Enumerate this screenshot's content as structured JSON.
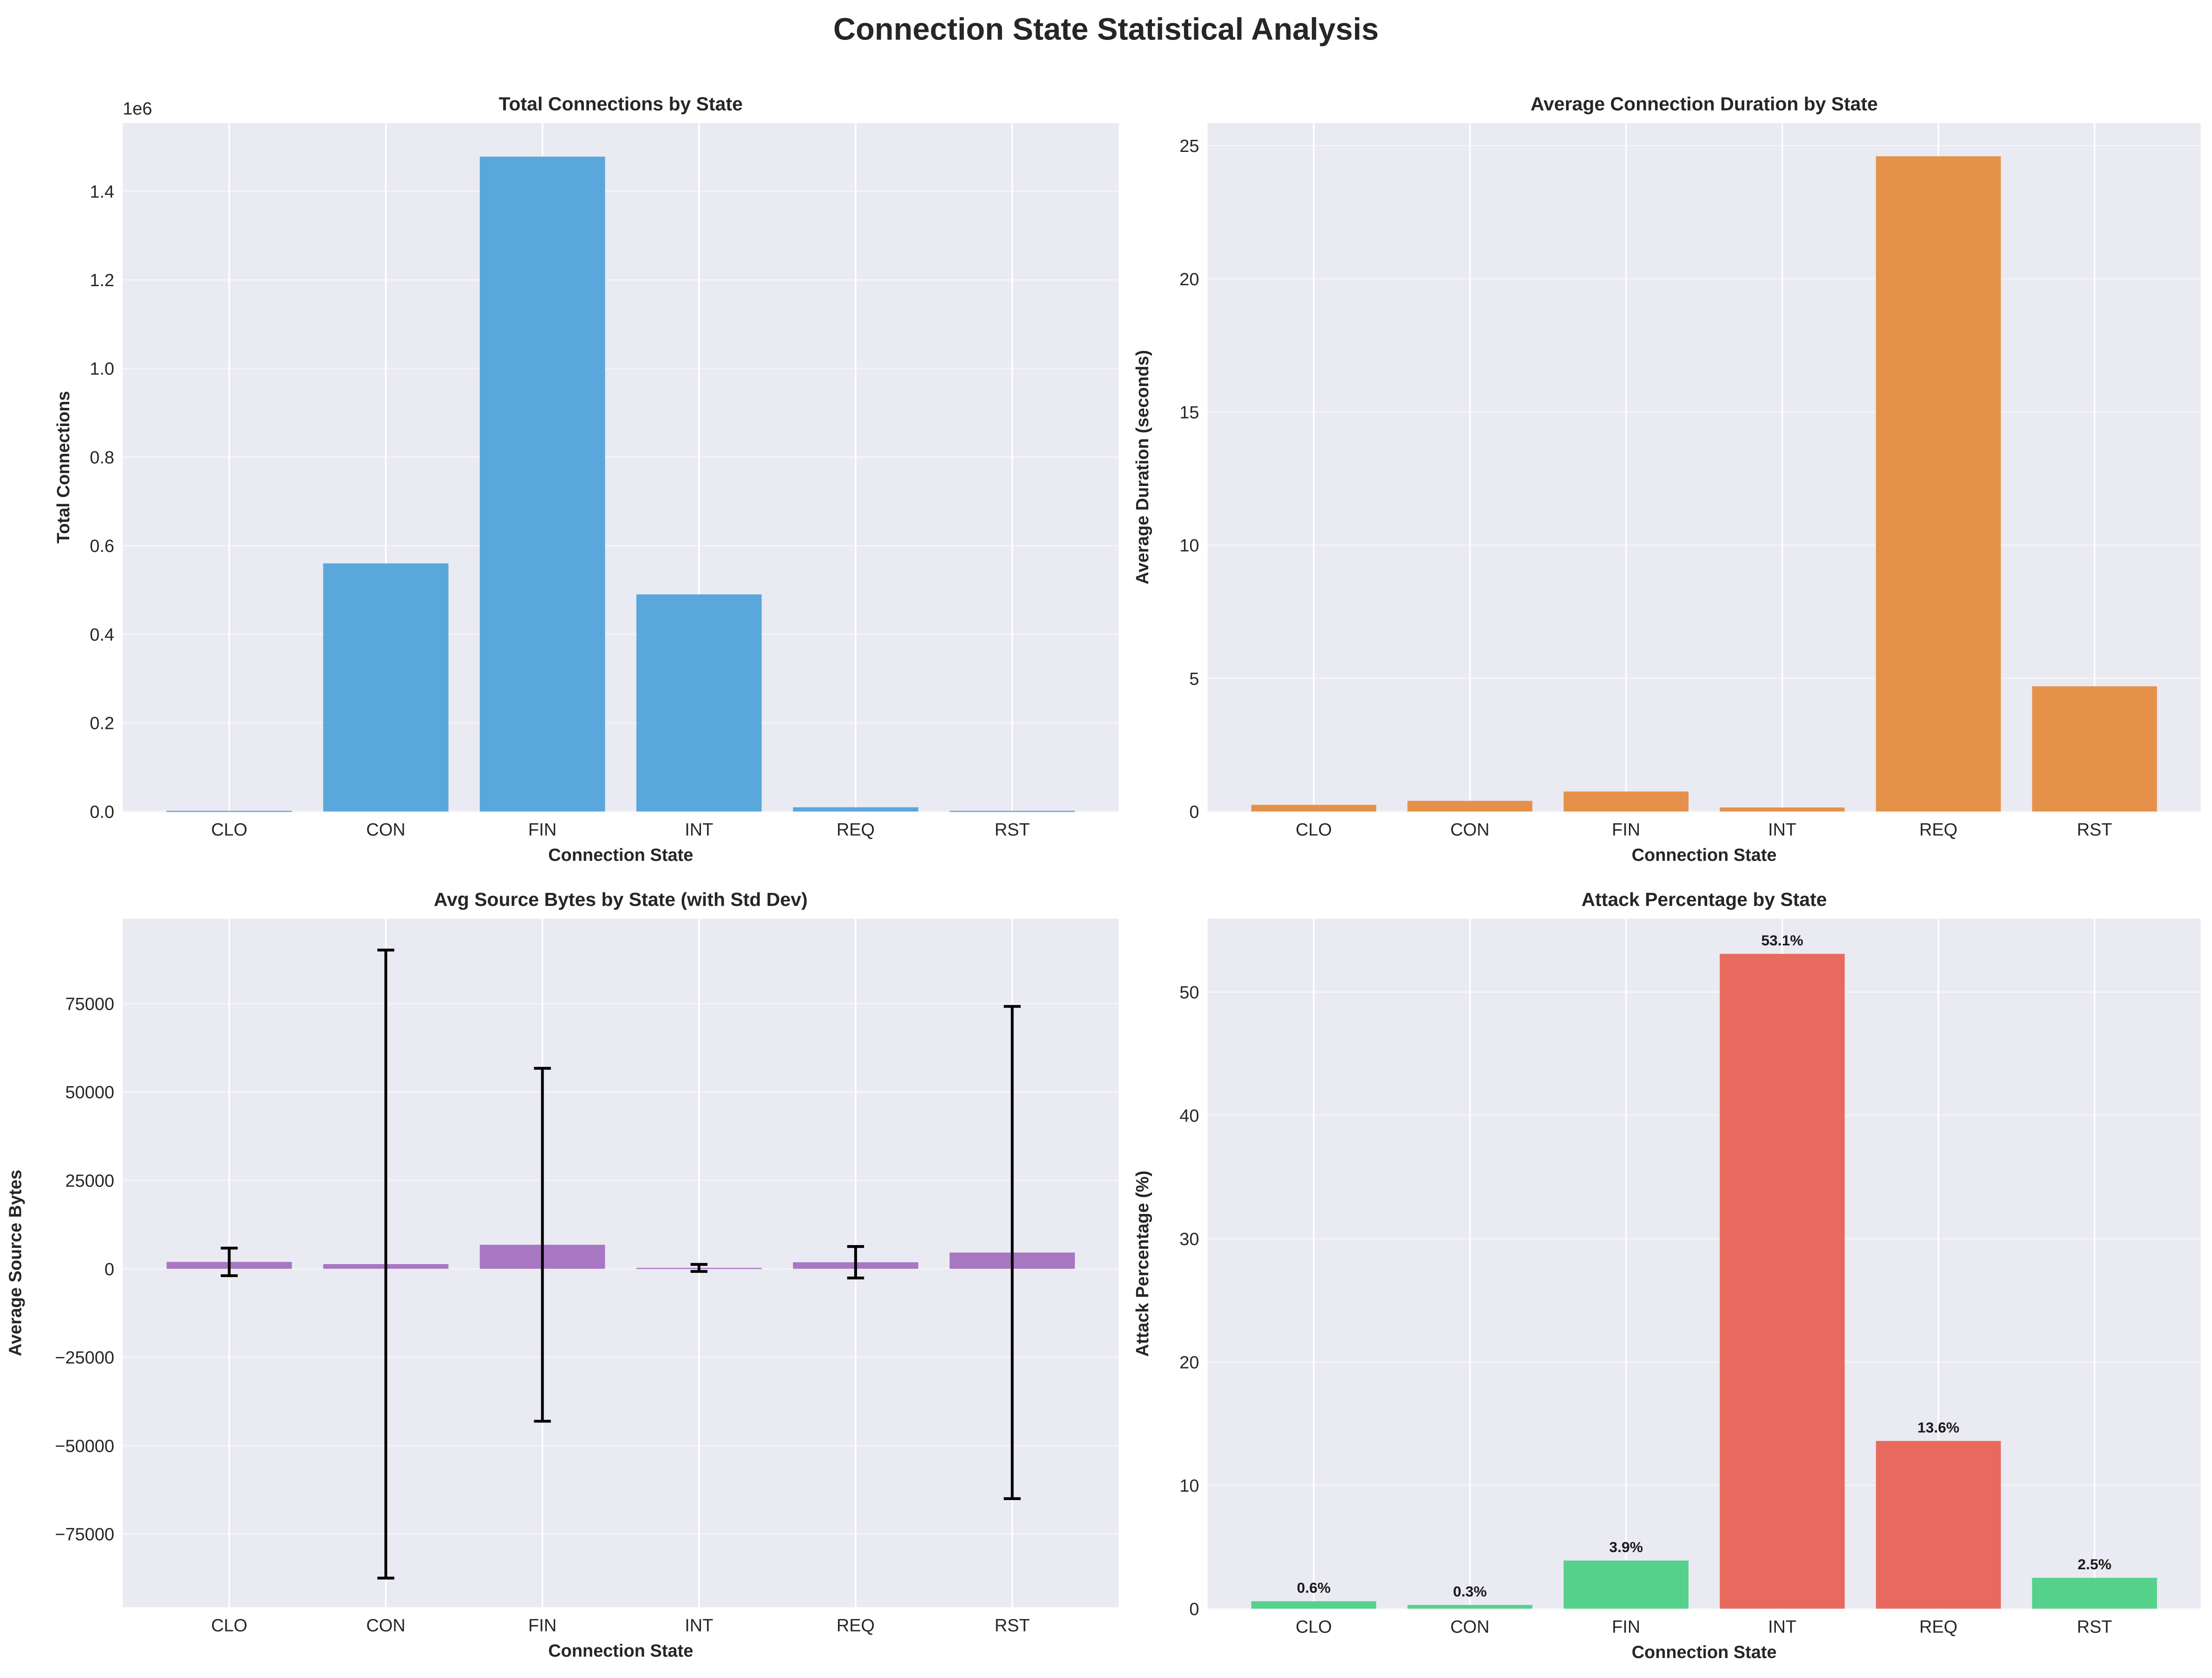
{
  "suptitle": "Connection State Statistical Analysis",
  "chart_data": [
    {
      "type": "bar",
      "title": "Total Connections by State",
      "xlabel": "Connection State",
      "ylabel": "Total Connections",
      "offset_text": "1e6",
      "categories": [
        "CLO",
        "CON",
        "FIN",
        "INT",
        "REQ",
        "RST"
      ],
      "values": [
        1500,
        560000,
        1478000,
        490000,
        9500,
        1500
      ],
      "ylim": [
        0,
        1554000
      ],
      "yticks": [
        0,
        200000,
        400000,
        600000,
        800000,
        1000000,
        1200000,
        1400000
      ],
      "ytick_labels": [
        "0.0",
        "0.2",
        "0.4",
        "0.6",
        "0.8",
        "1.0",
        "1.2",
        "1.4"
      ],
      "color": "#5aa7dc",
      "grid": true
    },
    {
      "type": "bar",
      "title": "Average Connection Duration by State",
      "xlabel": "Connection State",
      "ylabel": "Average Duration (seconds)",
      "categories": [
        "CLO",
        "CON",
        "FIN",
        "INT",
        "REQ",
        "RST"
      ],
      "values": [
        0.25,
        0.4,
        0.75,
        0.15,
        24.6,
        4.7
      ],
      "ylim": [
        0,
        25.85
      ],
      "yticks": [
        0,
        5,
        10,
        15,
        20,
        25
      ],
      "ytick_labels": [
        "0",
        "5",
        "10",
        "15",
        "20",
        "25"
      ],
      "color": "#e5914a",
      "grid": true
    },
    {
      "type": "bar",
      "title": "Avg Source Bytes by State (with Std Dev)",
      "xlabel": "Connection State",
      "ylabel": "Average Source Bytes",
      "categories": [
        "CLO",
        "CON",
        "FIN",
        "INT",
        "REQ",
        "RST"
      ],
      "values": [
        1950,
        1340,
        6800,
        250,
        1850,
        4600
      ],
      "std": [
        3900,
        88800,
        49900,
        1000,
        4450,
        69600
      ],
      "ylim": [
        -95700,
        99000
      ],
      "yticks": [
        -75000,
        -50000,
        -25000,
        0,
        25000,
        50000,
        75000
      ],
      "ytick_labels": [
        "−75000",
        "−50000",
        "−25000",
        "0",
        "25000",
        "50000",
        "75000"
      ],
      "color": "#a977c2",
      "grid": true
    },
    {
      "type": "bar",
      "title": "Attack Percentage by State",
      "xlabel": "Connection State",
      "ylabel": "Attack Percentage (%)",
      "categories": [
        "CLO",
        "CON",
        "FIN",
        "INT",
        "REQ",
        "RST"
      ],
      "values": [
        0.6,
        0.3,
        3.9,
        53.1,
        13.6,
        2.5
      ],
      "data_labels": [
        "0.6%",
        "0.3%",
        "3.9%",
        "53.1%",
        "13.6%",
        "2.5%"
      ],
      "colors": [
        "#55d18b",
        "#55d18b",
        "#55d18b",
        "#e86a5e",
        "#e86a5e",
        "#55d18b"
      ],
      "ylim": [
        0,
        55.95
      ],
      "yticks": [
        0,
        10,
        20,
        30,
        40,
        50
      ],
      "ytick_labels": [
        "0",
        "10",
        "20",
        "30",
        "40",
        "50"
      ],
      "grid": true
    }
  ]
}
